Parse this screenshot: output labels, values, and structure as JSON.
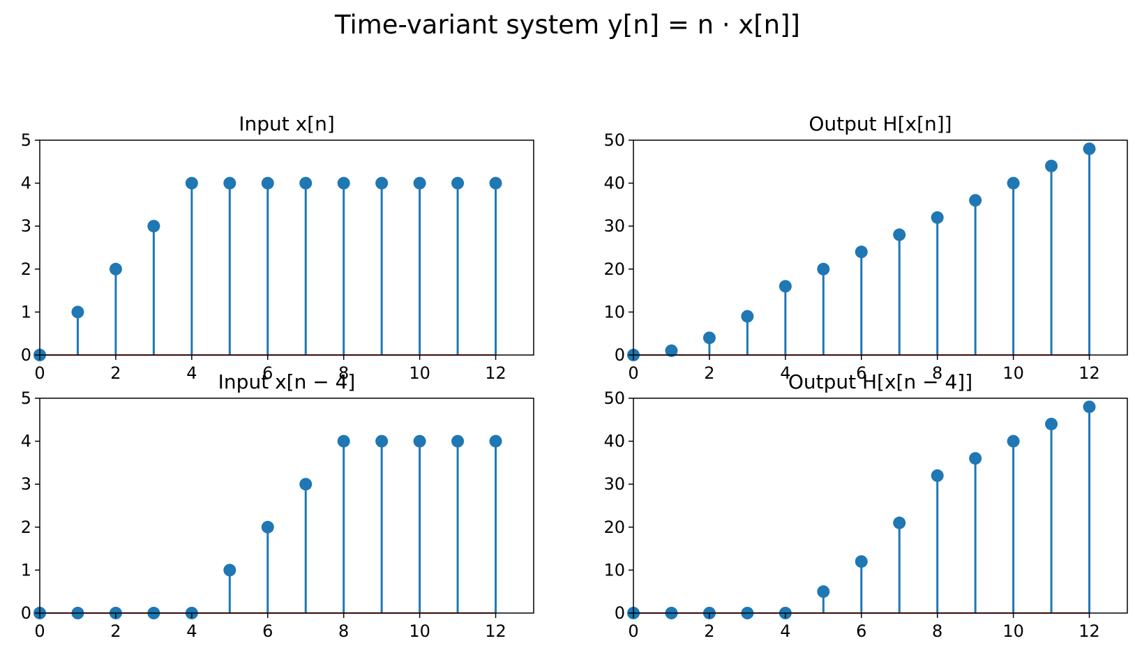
{
  "figure": {
    "title": "Time-variant system y[n] = n · x[n]]"
  },
  "colors": {
    "stem": "#1f77b4",
    "baseline": "#d62728",
    "axes": "#000000"
  },
  "chart_data": [
    {
      "type": "stem",
      "title": "Input x[n]",
      "x": [
        0,
        1,
        2,
        3,
        4,
        5,
        6,
        7,
        8,
        9,
        10,
        11,
        12
      ],
      "values": [
        0,
        1,
        2,
        3,
        4,
        4,
        4,
        4,
        4,
        4,
        4,
        4,
        4
      ],
      "xlim": [
        0,
        13
      ],
      "ylim": [
        0,
        5
      ],
      "xticks": [
        0,
        2,
        4,
        6,
        8,
        10,
        12
      ],
      "yticks": [
        0,
        1,
        2,
        3,
        4,
        5
      ],
      "grid": false
    },
    {
      "type": "stem",
      "title": "Output H[x[n]]",
      "x": [
        0,
        1,
        2,
        3,
        4,
        5,
        6,
        7,
        8,
        9,
        10,
        11,
        12
      ],
      "values": [
        0,
        1,
        4,
        9,
        16,
        20,
        24,
        28,
        32,
        36,
        40,
        44,
        48
      ],
      "xlim": [
        0,
        13
      ],
      "ylim": [
        0,
        50
      ],
      "xticks": [
        0,
        2,
        4,
        6,
        8,
        10,
        12
      ],
      "yticks": [
        0,
        10,
        20,
        30,
        40,
        50
      ],
      "grid": false
    },
    {
      "type": "stem",
      "title": "Input x[n − 4]",
      "x": [
        0,
        1,
        2,
        3,
        4,
        5,
        6,
        7,
        8,
        9,
        10,
        11,
        12
      ],
      "values": [
        0,
        0,
        0,
        0,
        0,
        1,
        2,
        3,
        4,
        4,
        4,
        4,
        4
      ],
      "xlim": [
        0,
        13
      ],
      "ylim": [
        0,
        5
      ],
      "xticks": [
        0,
        2,
        4,
        6,
        8,
        10,
        12
      ],
      "yticks": [
        0,
        1,
        2,
        3,
        4,
        5
      ],
      "grid": false
    },
    {
      "type": "stem",
      "title": "Output H[x[n − 4]]",
      "x": [
        0,
        1,
        2,
        3,
        4,
        5,
        6,
        7,
        8,
        9,
        10,
        11,
        12
      ],
      "values": [
        0,
        0,
        0,
        0,
        0,
        5,
        12,
        21,
        32,
        36,
        40,
        44,
        48
      ],
      "xlim": [
        0,
        13
      ],
      "ylim": [
        0,
        50
      ],
      "xticks": [
        0,
        2,
        4,
        6,
        8,
        10,
        12
      ],
      "yticks": [
        0,
        10,
        20,
        30,
        40,
        50
      ],
      "grid": false
    }
  ]
}
